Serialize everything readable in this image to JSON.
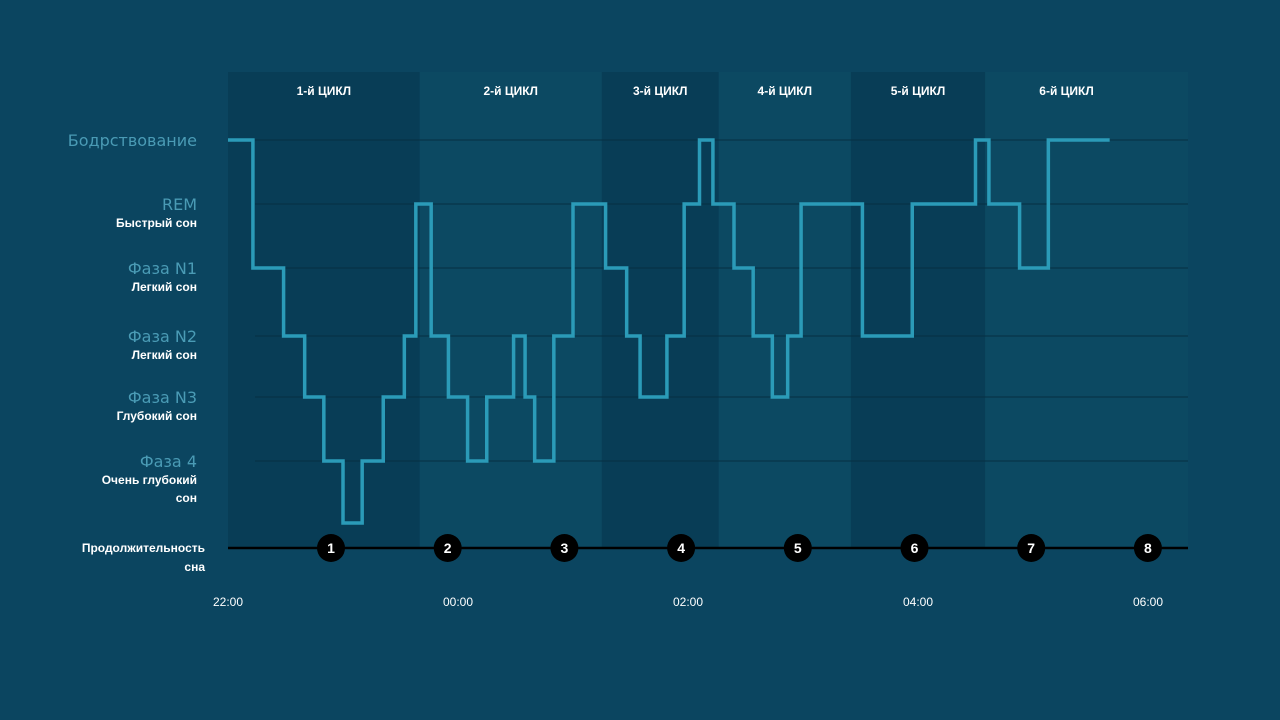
{
  "chart_data": {
    "type": "line",
    "step": true,
    "colors": {
      "background": "#0b4560",
      "plot_area": "#0c4962",
      "cycle_band": "#083d56",
      "line": "#2b9bb8",
      "gridline": "#062f42",
      "axis": "#000000",
      "marker": "#000000",
      "stage_name": "#4a9bb5",
      "text": "#ffffff"
    },
    "grid": true,
    "stages": [
      {
        "name": "Бодрствование",
        "desc": []
      },
      {
        "name": "REM",
        "desc": [
          "Быстрый сон"
        ]
      },
      {
        "name": "Фаза N1",
        "desc": [
          "Легкий сон"
        ]
      },
      {
        "name": "Фаза N2",
        "desc": [
          "Легкий сон"
        ]
      },
      {
        "name": "Фаза N3",
        "desc": [
          "Глубокий сон"
        ]
      },
      {
        "name": "Фаза 4",
        "desc": [
          "Очень глубокий",
          "сон"
        ]
      }
    ],
    "cycles": [
      {
        "label": "1-й ЦИКЛ",
        "start": "22:00",
        "end": "23:40",
        "shaded": true
      },
      {
        "label": "2-й ЦИКЛ",
        "start": "23:40",
        "end": "01:15",
        "shaded": false
      },
      {
        "label": "3-й ЦИКЛ",
        "start": "01:15",
        "end": "02:16",
        "shaded": true
      },
      {
        "label": "4-й ЦИКЛ",
        "start": "02:16",
        "end": "03:25",
        "shaded": false
      },
      {
        "label": "5-й ЦИКЛ",
        "start": "03:25",
        "end": "04:35",
        "shaded": true
      },
      {
        "label": "6-й ЦИКЛ",
        "start": "04:35",
        "end": "06:00",
        "shaded": false
      }
    ],
    "x_title": [
      "Продолжительность",
      "сна"
    ],
    "x_ticks": [
      "22:00",
      "00:00",
      "02:00",
      "04:00",
      "06:00"
    ],
    "hour_markers": [
      "1",
      "2",
      "3",
      "4",
      "5",
      "6",
      "7",
      "8"
    ],
    "x_range": [
      "22:00",
      "06:00"
    ],
    "series": [
      {
        "points": [
          [
            "22:00",
            "Бодрствование"
          ],
          [
            "22:13",
            "REM"
          ],
          [
            "22:13",
            "Фаза N1"
          ],
          [
            "22:29",
            "Фаза N2"
          ],
          [
            "22:40",
            "Фаза N3"
          ],
          [
            "22:50",
            "Фаза 4"
          ],
          [
            "23:00",
            "Фаза 4+"
          ],
          [
            "23:10",
            "Фаза 4"
          ],
          [
            "23:21",
            "Фаза N3"
          ],
          [
            "23:32",
            "Фаза N2"
          ],
          [
            "23:38",
            "REM"
          ],
          [
            "23:46",
            "Фаза N2"
          ],
          [
            "23:55",
            "Фаза N3"
          ],
          [
            "00:05",
            "Фаза 4"
          ],
          [
            "00:15",
            "Фаза N3"
          ],
          [
            "00:29",
            "Фаза N2"
          ],
          [
            "00:35",
            "Фаза N3"
          ],
          [
            "00:40",
            "Фаза 4"
          ],
          [
            "00:50",
            "Фаза N2"
          ],
          [
            "01:00",
            "REM"
          ],
          [
            "01:17",
            "Фаза N1"
          ],
          [
            "01:28",
            "Фаза N2"
          ],
          [
            "01:35",
            "Фаза N3"
          ],
          [
            "01:49",
            "Фаза N2"
          ],
          [
            "01:58",
            "REM"
          ],
          [
            "02:06",
            "Бодрствование"
          ],
          [
            "02:13",
            "REM"
          ],
          [
            "02:24",
            "Фаза N1"
          ],
          [
            "02:34",
            "Фаза N2"
          ],
          [
            "02:44",
            "Фаза N3"
          ],
          [
            "02:52",
            "Фаза N2"
          ],
          [
            "02:59",
            "REM"
          ],
          [
            "03:31",
            "Фаза N2"
          ],
          [
            "03:57",
            "REM"
          ],
          [
            "04:30",
            "Бодрствование"
          ],
          [
            "04:37",
            "REM"
          ],
          [
            "04:53",
            "Фаза N1"
          ],
          [
            "05:08",
            "Бодрствование"
          ],
          [
            "05:40",
            "Бодрствование"
          ]
        ]
      }
    ]
  }
}
